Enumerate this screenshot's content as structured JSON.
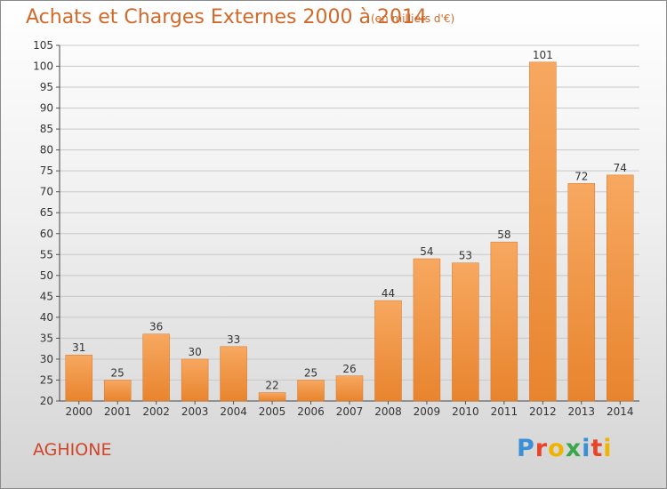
{
  "header": {
    "title": "Achats et Charges Externes 2000 à 2014",
    "subtitle": "(en milliers d'€)"
  },
  "footer": {
    "commune": "AGHIONE",
    "logo": "Proxiti",
    "logo_colors": [
      "#3a8fd6",
      "#e8442a",
      "#f0b400",
      "#3aa84a",
      "#3a8fd6",
      "#e8442a",
      "#f0b400"
    ]
  },
  "chart_data": {
    "type": "bar",
    "categories": [
      "2000",
      "2001",
      "2002",
      "2003",
      "2004",
      "2005",
      "2006",
      "2007",
      "2008",
      "2009",
      "2010",
      "2011",
      "2012",
      "2013",
      "2014"
    ],
    "values": [
      31,
      25,
      36,
      30,
      33,
      22,
      25,
      26,
      44,
      54,
      53,
      58,
      101,
      72,
      74
    ],
    "ylim": [
      20,
      105
    ],
    "yticks": [
      20,
      25,
      30,
      35,
      40,
      45,
      50,
      55,
      60,
      65,
      70,
      75,
      80,
      85,
      90,
      95,
      100,
      105
    ],
    "grid": true,
    "bar_color": "#e8842e",
    "bar_color_light": "#f7a860"
  }
}
